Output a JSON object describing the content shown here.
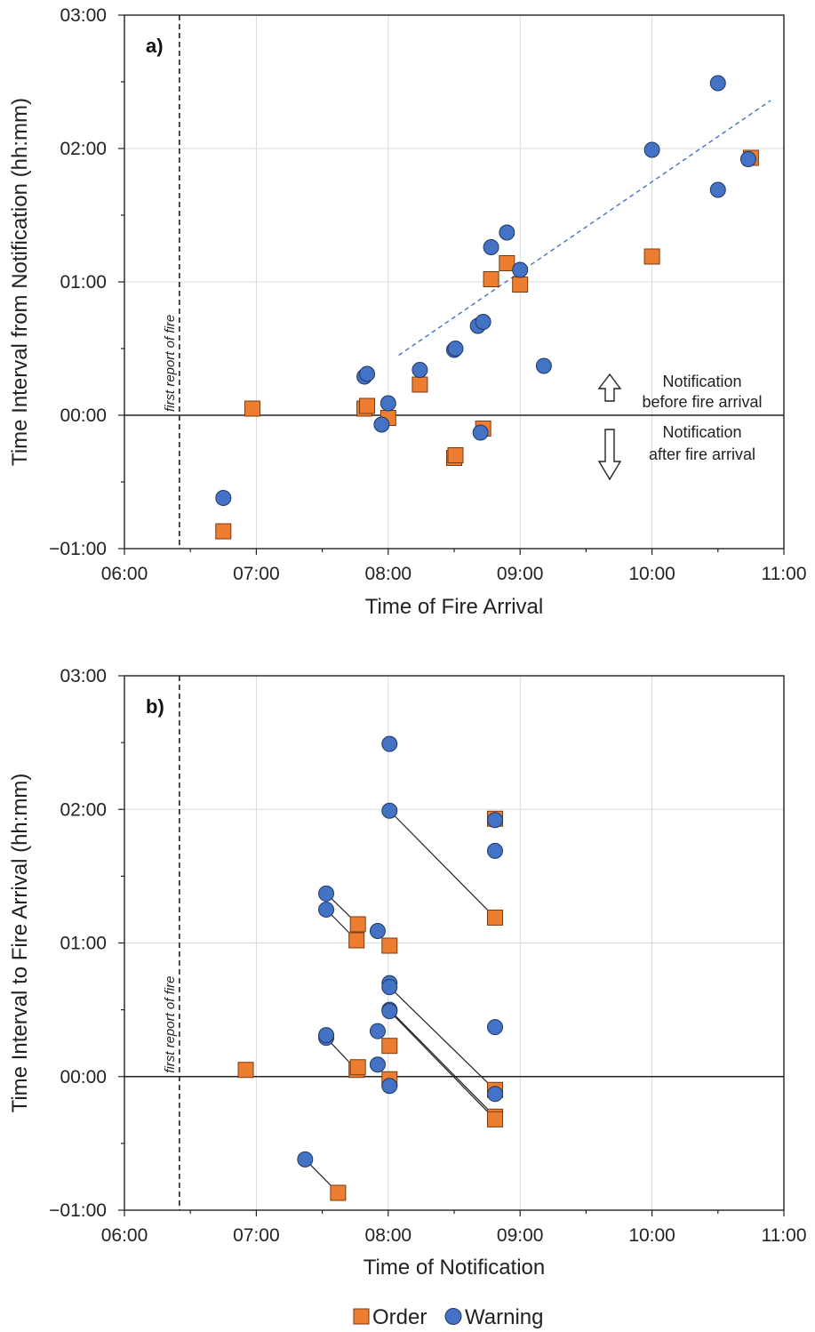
{
  "colors": {
    "order": "#ED7D31",
    "order_edge": "#7a3a10",
    "warning": "#4472C4",
    "warning_edge": "#203864",
    "grid": "#d9d9d9",
    "trend": "#4472C4"
  },
  "legend": {
    "order_label": "Order",
    "warning_label": "Warning",
    "order_marker": "square",
    "warning_marker": "circle"
  },
  "chart_data": [
    {
      "type": "scatter",
      "panel_label": "a)",
      "xlabel": "Time of Fire Arrival",
      "ylabel": "Time Interval from Notification (hh:mm)",
      "xlim_hours": [
        6,
        11
      ],
      "ylim_hours": [
        -1,
        3
      ],
      "x_ticks": [
        "06:00",
        "07:00",
        "08:00",
        "09:00",
        "10:00",
        "11:00"
      ],
      "y_ticks": [
        "−01:00",
        "00:00",
        "01:00",
        "02:00",
        "03:00"
      ],
      "grid": true,
      "first_report": {
        "x_hours": 6.417,
        "label": "first report of fire"
      },
      "annotations": {
        "above": [
          "Notification",
          "before fire arrival"
        ],
        "below": [
          "Notification",
          "after fire arrival"
        ]
      },
      "trendline": {
        "series": "Warning",
        "style": "dashed",
        "x_hours": [
          8.08,
          10.9
        ],
        "y_hours": [
          0.45,
          2.36
        ]
      },
      "series": [
        {
          "name": "Order",
          "marker": "square",
          "points_hours": [
            [
              6.75,
              -0.87
            ],
            [
              6.97,
              0.05
            ],
            [
              7.82,
              0.05
            ],
            [
              7.84,
              0.07
            ],
            [
              8.0,
              -0.02
            ],
            [
              8.24,
              0.23
            ],
            [
              8.5,
              -0.32
            ],
            [
              8.51,
              -0.3
            ],
            [
              8.72,
              -0.1
            ],
            [
              8.78,
              1.02
            ],
            [
              8.9,
              1.14
            ],
            [
              9.0,
              0.98
            ],
            [
              10.0,
              1.19
            ],
            [
              10.75,
              1.93
            ]
          ]
        },
        {
          "name": "Warning",
          "marker": "circle",
          "points_hours": [
            [
              6.75,
              -0.62
            ],
            [
              7.82,
              0.29
            ],
            [
              7.84,
              0.31
            ],
            [
              7.95,
              -0.07
            ],
            [
              8.0,
              0.09
            ],
            [
              8.24,
              0.34
            ],
            [
              8.5,
              0.49
            ],
            [
              8.51,
              0.5
            ],
            [
              8.68,
              0.67
            ],
            [
              8.7,
              -0.13
            ],
            [
              8.72,
              0.7
            ],
            [
              8.78,
              1.26
            ],
            [
              8.9,
              1.37
            ],
            [
              9.0,
              1.09
            ],
            [
              9.18,
              0.37
            ],
            [
              10.0,
              1.99
            ],
            [
              10.5,
              2.49
            ],
            [
              10.5,
              1.69
            ],
            [
              10.73,
              1.92
            ]
          ]
        }
      ]
    },
    {
      "type": "scatter",
      "panel_label": "b)",
      "xlabel": "Time of Notification",
      "ylabel": "Time Interval to Fire Arrival (hh:mm)",
      "xlim_hours": [
        6,
        11
      ],
      "ylim_hours": [
        -1,
        3
      ],
      "x_ticks": [
        "06:00",
        "07:00",
        "08:00",
        "09:00",
        "10:00",
        "11:00"
      ],
      "y_ticks": [
        "−01:00",
        "00:00",
        "01:00",
        "02:00",
        "03:00"
      ],
      "grid": true,
      "first_report": {
        "x_hours": 6.417,
        "label": "first report of fire"
      },
      "series": [
        {
          "name": "Order",
          "marker": "square",
          "points_hours": [
            [
              6.92,
              0.05
            ],
            [
              7.62,
              -0.87
            ],
            [
              7.76,
              0.05
            ],
            [
              7.77,
              0.07
            ],
            [
              7.76,
              1.02
            ],
            [
              7.77,
              1.14
            ],
            [
              8.01,
              0.98
            ],
            [
              8.01,
              0.23
            ],
            [
              8.01,
              -0.02
            ],
            [
              8.81,
              1.93
            ],
            [
              8.81,
              1.19
            ],
            [
              8.81,
              -0.1
            ],
            [
              8.81,
              -0.3
            ],
            [
              8.81,
              -0.32
            ]
          ]
        },
        {
          "name": "Warning",
          "marker": "circle",
          "points_hours": [
            [
              7.37,
              -0.62
            ],
            [
              7.53,
              1.37
            ],
            [
              7.53,
              1.25
            ],
            [
              7.53,
              0.29
            ],
            [
              7.53,
              0.31
            ],
            [
              7.92,
              1.09
            ],
            [
              7.92,
              0.34
            ],
            [
              7.92,
              0.09
            ],
            [
              8.01,
              2.49
            ],
            [
              8.01,
              1.99
            ],
            [
              8.01,
              0.7
            ],
            [
              8.01,
              0.67
            ],
            [
              8.01,
              0.5
            ],
            [
              8.01,
              0.49
            ],
            [
              8.01,
              -0.07
            ],
            [
              8.81,
              1.92
            ],
            [
              8.81,
              1.69
            ],
            [
              8.81,
              0.37
            ],
            [
              8.81,
              -0.13
            ]
          ]
        }
      ],
      "connectors_hours": [
        [
          [
            7.37,
            -0.62
          ],
          [
            7.62,
            -0.87
          ]
        ],
        [
          [
            7.53,
            1.37
          ],
          [
            7.77,
            1.14
          ]
        ],
        [
          [
            7.53,
            1.25
          ],
          [
            7.76,
            1.02
          ]
        ],
        [
          [
            7.53,
            0.29
          ],
          [
            7.76,
            0.05
          ]
        ],
        [
          [
            8.01,
            1.99
          ],
          [
            8.81,
            1.19
          ]
        ],
        [
          [
            8.01,
            0.67
          ],
          [
            8.81,
            -0.1
          ]
        ],
        [
          [
            8.01,
            0.5
          ],
          [
            8.81,
            -0.3
          ]
        ],
        [
          [
            8.01,
            0.49
          ],
          [
            8.81,
            -0.32
          ]
        ]
      ]
    }
  ]
}
